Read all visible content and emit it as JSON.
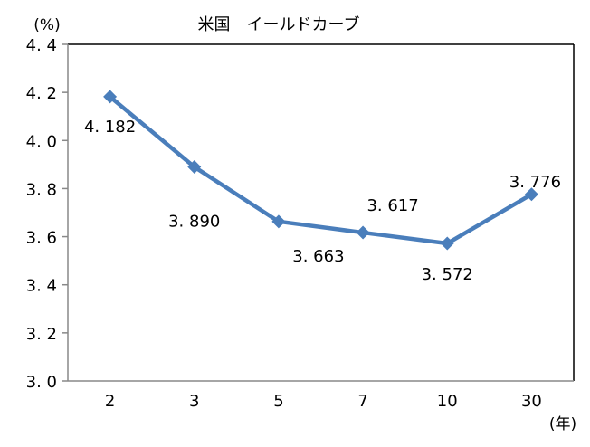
{
  "chart_data": {
    "type": "line",
    "title": "米国　イールドカーブ",
    "ylabel": "(%)",
    "xlabel": "(年)",
    "categories": [
      "2",
      "3",
      "5",
      "7",
      "10",
      "30"
    ],
    "series": [
      {
        "values": [
          4.182,
          3.89,
          3.663,
          3.617,
          3.572,
          3.776
        ]
      }
    ],
    "data_labels": [
      "4.182",
      "3.890",
      "3.663",
      "3.617",
      "3.572",
      "3.776"
    ],
    "label_placement": [
      "below-left",
      "below-left",
      "below-right",
      "above",
      "below",
      "above"
    ],
    "ylim": [
      3.0,
      4.4
    ],
    "yticks": [
      3.0,
      3.2,
      3.4,
      3.6,
      3.8,
      4.0,
      4.2,
      4.4
    ],
    "ytick_labels": [
      "3.0",
      "3.2",
      "3.4",
      "3.6",
      "3.8",
      "4.0",
      "4.2",
      "4.4"
    ],
    "grid": false,
    "legend": "none",
    "colors": {
      "series": "#4a7ebb",
      "marker": "#4a7ebb"
    },
    "marker": "diamond"
  }
}
